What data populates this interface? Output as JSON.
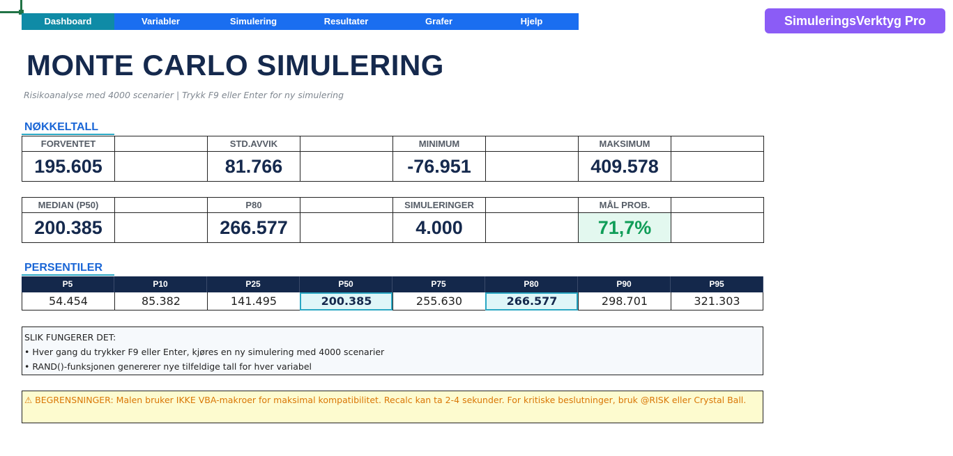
{
  "nav": {
    "items": [
      "Dashboard",
      "Variabler",
      "Simulering",
      "Resultater",
      "Grafer",
      "Hjelp"
    ]
  },
  "brand": "SimuleringsVerktyg Pro",
  "header": {
    "title": "MONTE CARLO SIMULERING",
    "subtitle": "Risikoanalyse med 4000 scenarier  |  Trykk F9 eller Enter for ny simulering"
  },
  "key_figures": {
    "section_label": "NØKKELTALL",
    "row1": [
      {
        "label": "FORVENTET",
        "value": "195.605"
      },
      {
        "label": "STD.AVVIK",
        "value": "81.766"
      },
      {
        "label": "MINIMUM",
        "value": "-76.951"
      },
      {
        "label": "MAKSIMUM",
        "value": "409.578"
      }
    ],
    "row2": [
      {
        "label": "MEDIAN (P50)",
        "value": "200.385"
      },
      {
        "label": "P80",
        "value": "266.577"
      },
      {
        "label": "SIMULERINGER",
        "value": "4.000"
      },
      {
        "label": "MÅL PROB.",
        "value": "71,7%"
      }
    ]
  },
  "percentiles": {
    "section_label": "PERSENTILER",
    "headers": [
      "P5",
      "P10",
      "P25",
      "P50",
      "P75",
      "P80",
      "P90",
      "P95"
    ],
    "values": [
      "54.454",
      "85.382",
      "141.495",
      "200.385",
      "255.630",
      "266.577",
      "298.701",
      "321.303"
    ]
  },
  "info_box": {
    "heading": "SLIK FUNGERER DET:",
    "line1": "• Hver gang du trykker F9 eller Enter, kjøres en ny simulering med 4000 scenarier",
    "line2": "• RAND()-funksjonen genererer nye tilfeldige tall for hver variabel"
  },
  "warning_box": {
    "text": "⚠ BEGRENSNINGER: Malen bruker IKKE VBA-makroer for maksimal kompatibilitet. Recalc kan ta 2-4 sekunder. For kritiske beslutninger, bruk @RISK eller Crystal Ball."
  },
  "colors": {
    "nav_bg": "#1a6ef0",
    "nav_active": "#0f8ba6",
    "brand_bg": "#8b5cf6",
    "title": "#15294d",
    "accent": "#1a66d6",
    "good": "#0f9d58",
    "warning_text": "#d97706",
    "warning_bg": "#fdfbcf"
  }
}
